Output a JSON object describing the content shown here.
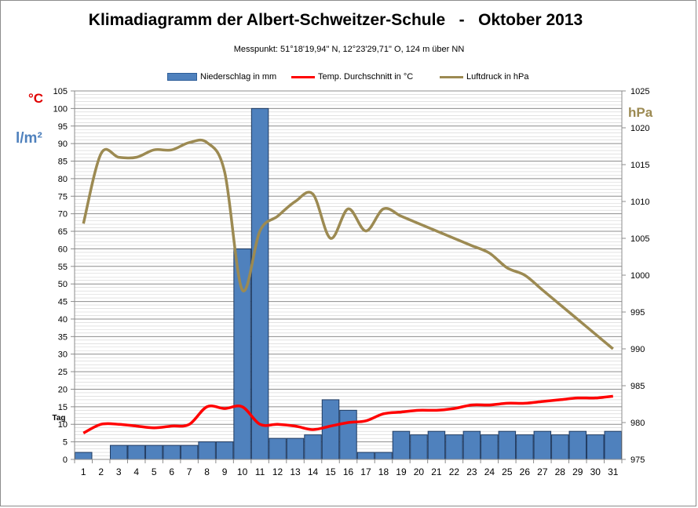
{
  "chart_data": {
    "type": "bar",
    "title": "Klimadiagramm der Albert-Schweitzer-Schule   -   Oktober 2013",
    "subtitle": "Messpunkt:  51°18'19,94\" N,  12°23'29,71\" O,  124 m über NN",
    "unit_left_temp": "°C",
    "unit_left_precip": "l/m²",
    "unit_right": "hPa",
    "xlabel": "Tag",
    "categories": [
      "1",
      "2",
      "3",
      "4",
      "5",
      "6",
      "7",
      "8",
      "9",
      "10",
      "11",
      "12",
      "13",
      "14",
      "15",
      "16",
      "17",
      "18",
      "19",
      "20",
      "21",
      "22",
      "23",
      "24",
      "25",
      "26",
      "27",
      "28",
      "29",
      "30",
      "31"
    ],
    "ylim": [
      0,
      105
    ],
    "y_ticks": [
      0,
      5,
      10,
      15,
      20,
      25,
      30,
      35,
      40,
      45,
      50,
      55,
      60,
      65,
      70,
      75,
      80,
      85,
      90,
      95,
      100,
      105
    ],
    "y2lim": [
      975,
      1025
    ],
    "y2_ticks": [
      975,
      980,
      985,
      990,
      995,
      1000,
      1005,
      1010,
      1015,
      1020,
      1025
    ],
    "grid": true,
    "legend_position": "top",
    "series": [
      {
        "name": "Niederschlag in mm",
        "type": "bar",
        "axis": "left",
        "color": "#4f81bd",
        "values": [
          2,
          0,
          4,
          4,
          4,
          4,
          4,
          5,
          5,
          60,
          100,
          6,
          6,
          7,
          17,
          14,
          2,
          2,
          8,
          7,
          8,
          7,
          8,
          7,
          8,
          7,
          8,
          7,
          8,
          7,
          8
        ]
      },
      {
        "name": "Temp. Durchschnitt in °C",
        "type": "line",
        "axis": "left",
        "color": "#ff0000",
        "values": [
          7.5,
          10,
          10,
          9.5,
          9,
          9.5,
          10,
          15,
          14.5,
          15,
          10,
          10,
          9.5,
          8.5,
          9.5,
          10.5,
          11,
          13,
          13.5,
          14,
          14,
          14.5,
          15.5,
          15.5,
          16,
          16,
          16.5,
          17,
          17.5,
          17.5,
          18
        ]
      },
      {
        "name": "Luftdruck in hPa",
        "type": "line",
        "axis": "right",
        "color": "#9c8a52",
        "values": [
          1007,
          1016.5,
          1016,
          1016,
          1017,
          1017,
          1018,
          1018,
          1014,
          998,
          1006,
          1008,
          1010,
          1011,
          1005,
          1009,
          1006,
          1009,
          1008,
          1007,
          1006,
          1005,
          1004,
          1003,
          1001,
          1000,
          998,
          996,
          994,
          992,
          990
        ]
      }
    ]
  }
}
